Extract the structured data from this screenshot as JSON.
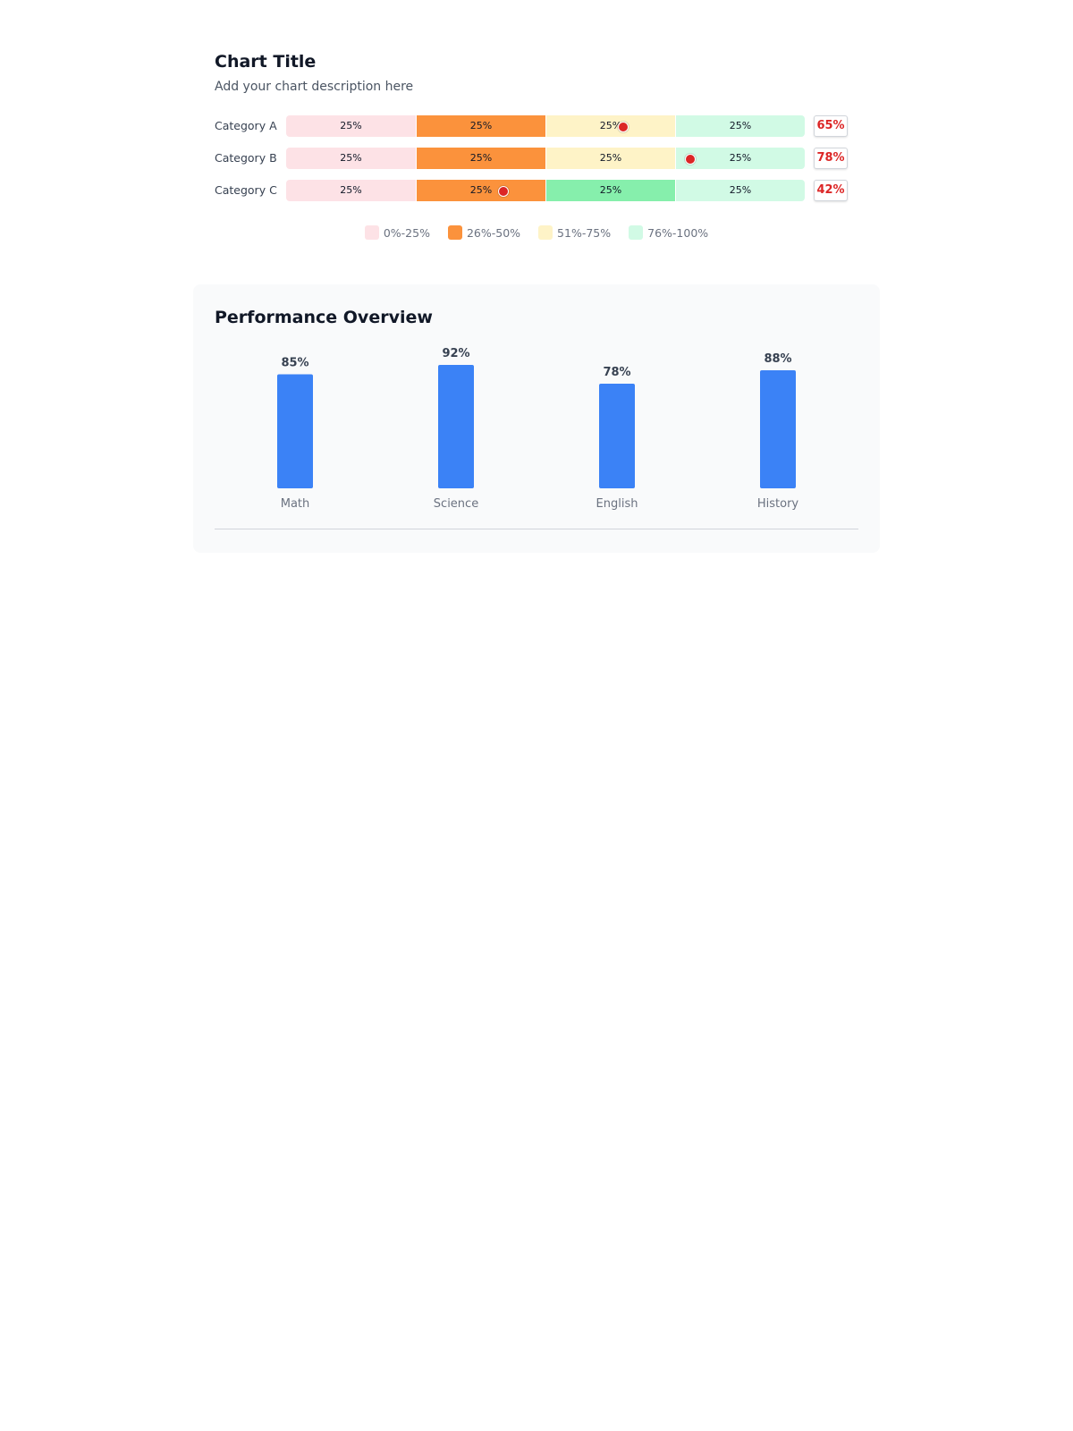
{
  "header": {
    "title": "Chart Title",
    "description": "Add your chart description here"
  },
  "gauge_rows": [
    {
      "label": "Category A",
      "score": "65%",
      "marker": 65,
      "segments": [
        {
          "label": "25%",
          "color": "#fde2e6"
        },
        {
          "label": "25%",
          "color": "#fb923c"
        },
        {
          "label": "25%",
          "color": "#fef3c7"
        },
        {
          "label": "25%",
          "color": "#d1fae5"
        }
      ]
    },
    {
      "label": "Category B",
      "score": "78%",
      "marker": 78,
      "segments": [
        {
          "label": "25%",
          "color": "#fde2e6"
        },
        {
          "label": "25%",
          "color": "#fb923c"
        },
        {
          "label": "25%",
          "color": "#fef3c7"
        },
        {
          "label": "25%",
          "color": "#d1fae5"
        }
      ]
    },
    {
      "label": "Category C",
      "score": "42%",
      "marker": 42,
      "segments": [
        {
          "label": "25%",
          "color": "#fde2e6"
        },
        {
          "label": "25%",
          "color": "#fb923c"
        },
        {
          "label": "25%",
          "color": "#86efac"
        },
        {
          "label": "25%",
          "color": "#d1fae5"
        }
      ]
    }
  ],
  "legend": [
    {
      "label": "0%-25%",
      "color": "#fde2e6"
    },
    {
      "label": "26%-50%",
      "color": "#fb923c"
    },
    {
      "label": "51%-75%",
      "color": "#fef3c7"
    },
    {
      "label": "76%-100%",
      "color": "#d1fae5"
    }
  ],
  "performance": {
    "title": "Performance Overview"
  },
  "chart_data": [
    {
      "type": "bar",
      "title": "Chart Title",
      "subtitle": "Add your chart description here",
      "categories": [
        "Category A",
        "Category B",
        "Category C"
      ],
      "values": [
        65,
        78,
        42
      ],
      "value_labels": [
        "65%",
        "78%",
        "42%"
      ],
      "bands": [
        "0%-25%",
        "26%-50%",
        "51%-75%",
        "76%-100%"
      ],
      "band_colors": [
        "#fde2e6",
        "#fb923c",
        "#fef3c7",
        "#d1fae5"
      ],
      "ylim": [
        0,
        100
      ]
    },
    {
      "type": "bar",
      "title": "Performance Overview",
      "categories": [
        "Math",
        "Science",
        "English",
        "History"
      ],
      "values": [
        85,
        92,
        78,
        88
      ],
      "value_labels": [
        "85%",
        "92%",
        "78%",
        "88%"
      ],
      "ylim": [
        0,
        100
      ],
      "color": "#3b82f6",
      "grid": false
    }
  ]
}
